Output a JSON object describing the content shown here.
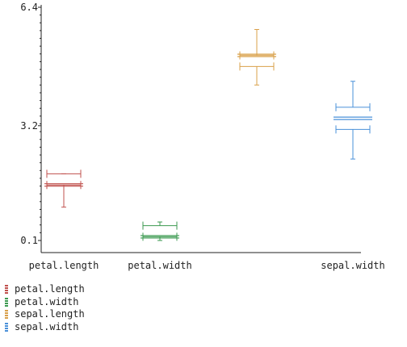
{
  "chart_data": {
    "type": "box",
    "categories": [
      "petal.length",
      "petal.width",
      "sepal.length",
      "sepal.width"
    ],
    "x_tick_labels": [
      "petal.length",
      "petal.width",
      "",
      "sepal.width"
    ],
    "y_ticks": [
      "0.1",
      "3.2",
      "6.4"
    ],
    "ylim": [
      0.1,
      6.4
    ],
    "title": "",
    "xlabel": "",
    "ylabel": "",
    "grid": false,
    "legend_position": "bottom-left",
    "series": [
      {
        "name": "petal.length",
        "color": "#c0504d",
        "whisker_low": 1.0,
        "q1": 1.6,
        "median": 1.6,
        "q3": 1.9,
        "whisker_high": 1.9
      },
      {
        "name": "petal.width",
        "color": "#3c9a50",
        "whisker_low": 0.1,
        "q1": 0.2,
        "median": 0.2,
        "q3": 0.5,
        "whisker_high": 0.6
      },
      {
        "name": "sepal.length",
        "color": "#d9a04a",
        "whisker_low": 4.3,
        "q1": 4.8,
        "median": 5.1,
        "q3": 5.1,
        "whisker_high": 5.8
      },
      {
        "name": "sepal.width",
        "color": "#4a90d9",
        "whisker_low": 2.3,
        "q1": 3.1,
        "median": 3.4,
        "q3": 3.7,
        "whisker_high": 4.4
      }
    ]
  }
}
